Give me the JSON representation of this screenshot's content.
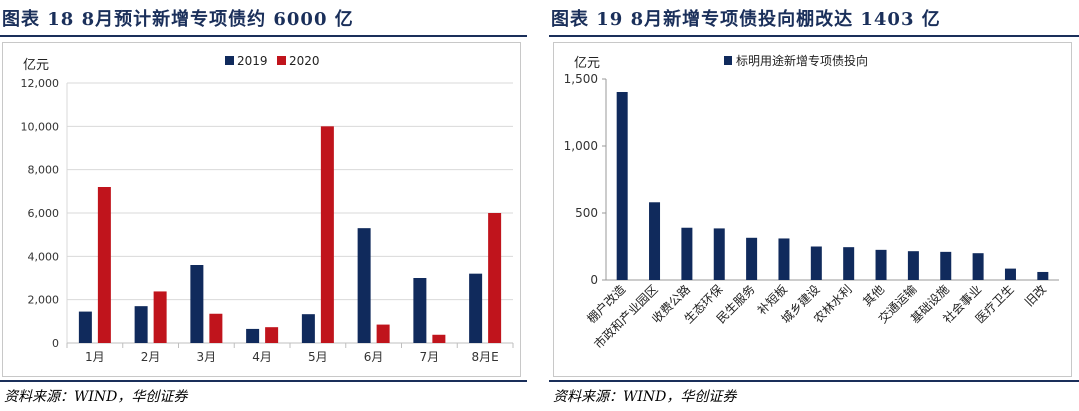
{
  "left": {
    "title": "图表 18   8月预计新增专项债约 6000 亿",
    "source": "资料来源：WIND，华创证券",
    "chart_data": {
      "type": "bar",
      "ylabel": "亿元",
      "ylim": [
        0,
        12000
      ],
      "yticks": [
        "0",
        "2,000",
        "4,000",
        "6,000",
        "8,000",
        "10,000",
        "12,000"
      ],
      "ytick_values": [
        0,
        2000,
        4000,
        6000,
        8000,
        10000,
        12000
      ],
      "grid": true,
      "legend_position": "top",
      "categories": [
        "1月",
        "2月",
        "3月",
        "4月",
        "5月",
        "6月",
        "7月",
        "8月E"
      ],
      "series": [
        {
          "name": "2019",
          "color": "#102a5c",
          "values": [
            1450,
            1700,
            3600,
            650,
            1330,
            5300,
            3000,
            3200
          ]
        },
        {
          "name": "2020",
          "color": "#c0141c",
          "values": [
            7200,
            2380,
            1350,
            730,
            10000,
            850,
            380,
            6000
          ]
        }
      ]
    }
  },
  "right": {
    "title": "图表 19   8月新增专项债投向棚改达 1403 亿",
    "source": "资料来源：WIND，华创证券",
    "chart_data": {
      "type": "bar",
      "ylabel": "亿元",
      "ylim": [
        0,
        1500
      ],
      "yticks": [
        "0",
        "500",
        "1,000",
        "1,500"
      ],
      "ytick_values": [
        0,
        500,
        1000,
        1500
      ],
      "grid": false,
      "legend_position": "top",
      "categories": [
        "棚户改造",
        "市政和产业园区",
        "收费公路",
        "生态环保",
        "民生服务",
        "补短板",
        "城乡建设",
        "农林水利",
        "其他",
        "交通运输",
        "基础设施",
        "社会事业",
        "医疗卫生",
        "旧改"
      ],
      "series": [
        {
          "name": "标明用途新增专项债投向",
          "color": "#102a5c",
          "values": [
            1403,
            580,
            390,
            385,
            315,
            310,
            250,
            245,
            225,
            215,
            210,
            200,
            85,
            60
          ]
        }
      ]
    }
  }
}
